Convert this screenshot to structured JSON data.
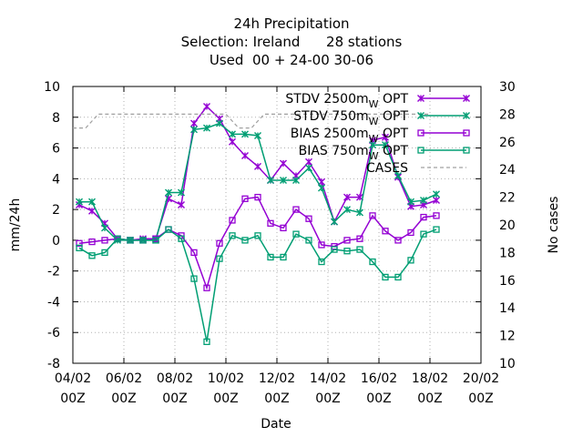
{
  "title_lines": [
    "24h Precipitation",
    "Selection: Ireland      28 stations",
    "Used  00 + 24-00 30-06"
  ],
  "chart_data": {
    "type": "line",
    "title": "24h Precipitation",
    "xlabel": "Date",
    "ylabel": "mm/24h",
    "y2label": "No cases",
    "x_tick_labels": [
      [
        "04/02",
        "00Z"
      ],
      [
        "06/02",
        "00Z"
      ],
      [
        "08/02",
        "00Z"
      ],
      [
        "10/02",
        "00Z"
      ],
      [
        "12/02",
        "00Z"
      ],
      [
        "14/02",
        "00Z"
      ],
      [
        "16/02",
        "00Z"
      ],
      [
        "18/02",
        "00Z"
      ],
      [
        "20/02",
        "00Z"
      ]
    ],
    "x_tick_dates": [
      "04/02 00Z",
      "06/02 00Z",
      "08/02 00Z",
      "10/02 00Z",
      "12/02 00Z",
      "14/02 00Z",
      "16/02 00Z",
      "18/02 00Z",
      "20/02 00Z"
    ],
    "xlim": [
      "04/02 00Z",
      "20/02 00Z"
    ],
    "ylim": [
      -8,
      10
    ],
    "y_ticks": [
      -8,
      -6,
      -4,
      -2,
      0,
      2,
      4,
      6,
      8,
      10
    ],
    "y2lim": [
      10,
      30
    ],
    "y2_ticks": [
      10,
      12,
      14,
      16,
      18,
      20,
      22,
      24,
      26,
      28,
      30
    ],
    "grid": true,
    "legend_position": "top-right",
    "x_dates": [
      "04/02 06Z",
      "04/02 18Z",
      "05/02 06Z",
      "05/02 18Z",
      "06/02 06Z",
      "06/02 18Z",
      "07/02 06Z",
      "07/02 18Z",
      "08/02 06Z",
      "08/02 18Z",
      "09/02 06Z",
      "09/02 18Z",
      "10/02 06Z",
      "10/02 18Z",
      "11/02 06Z",
      "11/02 18Z",
      "12/02 06Z",
      "12/02 18Z",
      "13/02 06Z",
      "13/02 18Z",
      "14/02 06Z",
      "14/02 18Z",
      "15/02 06Z",
      "15/02 18Z",
      "16/02 06Z",
      "16/02 18Z",
      "17/02 06Z",
      "17/02 18Z",
      "18/02 06Z"
    ],
    "series": [
      {
        "name": "STDV 2500m_{W} OPT",
        "axis": "y1",
        "color": "#9400d3",
        "marker": "x-star",
        "values": [
          2.3,
          1.9,
          1.1,
          0.1,
          0.0,
          0.1,
          0.1,
          2.7,
          2.3,
          7.6,
          8.7,
          7.9,
          6.4,
          5.5,
          4.8,
          3.9,
          5.0,
          4.2,
          5.1,
          3.8,
          1.2,
          2.8,
          2.8,
          6.5,
          6.7,
          4.1,
          2.2,
          2.3,
          2.6
        ]
      },
      {
        "name": "STDV 750m_{W} OPT",
        "axis": "y1",
        "color": "#009e73",
        "marker": "x-star",
        "values": [
          2.5,
          2.5,
          0.8,
          0.0,
          0.0,
          0.0,
          0.0,
          3.1,
          3.1,
          7.2,
          7.3,
          7.6,
          6.9,
          6.9,
          6.8,
          3.9,
          3.9,
          3.9,
          4.7,
          3.4,
          1.2,
          2.0,
          1.8,
          6.2,
          6.2,
          4.2,
          2.5,
          2.6,
          3.0
        ]
      },
      {
        "name": "BIAS 2500m_{W} OPT",
        "axis": "y1",
        "color": "#9400d3",
        "marker": "square",
        "values": [
          -0.2,
          -0.1,
          0.0,
          0.1,
          0.0,
          0.0,
          0.1,
          0.7,
          0.3,
          -0.8,
          -3.1,
          -0.2,
          1.3,
          2.7,
          2.8,
          1.1,
          0.8,
          2.0,
          1.4,
          -0.3,
          -0.4,
          0.0,
          0.1,
          1.6,
          0.6,
          0.0,
          0.5,
          1.5,
          1.6
        ]
      },
      {
        "name": "BIAS 750m_{W} OPT",
        "axis": "y1",
        "color": "#009e73",
        "marker": "square",
        "values": [
          -0.5,
          -1.0,
          -0.8,
          0.1,
          0.0,
          0.0,
          0.0,
          0.7,
          0.1,
          -2.5,
          -6.6,
          -1.2,
          0.3,
          0.0,
          0.3,
          -1.1,
          -1.1,
          0.4,
          0.0,
          -1.4,
          -0.6,
          -0.7,
          -0.6,
          -1.4,
          -2.4,
          -2.4,
          -1.3,
          0.4,
          0.7
        ]
      },
      {
        "name": "CASES",
        "axis": "y2",
        "color": "#a0a0a0",
        "style": "dashed",
        "x_dates": [
          "04/02 00Z",
          "04/02 12Z",
          "05/02 00Z",
          "06/02 00Z",
          "07/02 00Z",
          "08/02 00Z",
          "09/02 00Z",
          "10/02 00Z",
          "10/02 12Z",
          "11/02 00Z",
          "11/02 12Z",
          "12/02 00Z",
          "13/02 00Z",
          "14/02 00Z",
          "15/02 00Z",
          "16/02 00Z",
          "17/02 00Z",
          "18/02 00Z"
        ],
        "values": [
          27,
          27,
          28,
          28,
          28,
          28,
          28,
          28,
          27,
          27,
          28,
          28,
          28,
          28,
          28,
          28,
          28,
          28
        ]
      }
    ]
  }
}
